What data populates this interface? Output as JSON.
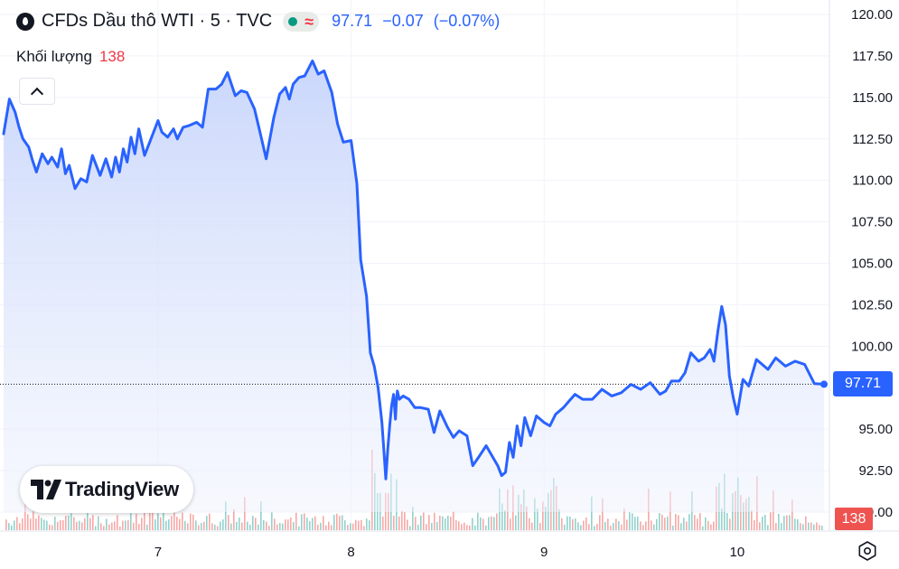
{
  "legend": {
    "title": "CFDs Dầu thô WTI · 5 · TVC",
    "last": "97.71",
    "change": "−0.07",
    "change_pct": "(−0.07%)",
    "volume_label": "Khối lượng",
    "volume_value": "138"
  },
  "price_tag": "97.71",
  "volume_tag": "138",
  "logo_text": "TradingView",
  "colors": {
    "line": "#2962ff",
    "area_top": "#c8d6fb",
    "volume_up": "#26a69a",
    "volume_down": "#ef5350",
    "price_tag": "#2962ff"
  },
  "chart_data": {
    "type": "area",
    "title": "CFDs Dầu thô WTI · 5 · TVC",
    "xlabel": "",
    "ylabel": "",
    "x_ticks": [
      "7",
      "8",
      "9",
      "10"
    ],
    "y_ticks": [
      "120.00",
      "117.50",
      "115.00",
      "112.50",
      "110.00",
      "107.50",
      "105.00",
      "102.50",
      "100.00",
      "97.50",
      "95.00",
      "92.50",
      "90.00"
    ],
    "ylim": [
      90,
      120
    ],
    "xlim": [
      6.2,
      10.45
    ],
    "grid": true,
    "price_line": 97.71,
    "series": [
      {
        "x": [
          6.2,
          6.23,
          6.26,
          6.28,
          6.3,
          6.33,
          6.35,
          6.37,
          6.4,
          6.43,
          6.45,
          6.48,
          6.5,
          6.52,
          6.54,
          6.57,
          6.6,
          6.63,
          6.66,
          6.7,
          6.73,
          6.76,
          6.78,
          6.8,
          6.82,
          6.84,
          6.86,
          6.88,
          6.9,
          6.93,
          6.96,
          7.0,
          7.02,
          7.05,
          7.08,
          7.1,
          7.13,
          7.16,
          7.2,
          7.23,
          7.26,
          7.3,
          7.33,
          7.36,
          7.4,
          7.43,
          7.46,
          7.5,
          7.53,
          7.56,
          7.6,
          7.63,
          7.66,
          7.68,
          7.7,
          7.73,
          7.76,
          7.8,
          7.83,
          7.86,
          7.9,
          7.93,
          7.96,
          8.0,
          8.03,
          8.05,
          8.08,
          8.1,
          8.12,
          8.14,
          8.16,
          8.17,
          8.18,
          8.19,
          8.2,
          8.21,
          8.22,
          8.23,
          8.235,
          8.24,
          8.25,
          8.27,
          8.3,
          8.33,
          8.36,
          8.4,
          8.43,
          8.46,
          8.5,
          8.53,
          8.56,
          8.6,
          8.63,
          8.66,
          8.7,
          8.73,
          8.76,
          8.78,
          8.8,
          8.82,
          8.84,
          8.86,
          8.88,
          8.9,
          8.93,
          8.96,
          9.0,
          9.03,
          9.06,
          9.1,
          9.13,
          9.16,
          9.2,
          9.25,
          9.3,
          9.35,
          9.4,
          9.45,
          9.5,
          9.55,
          9.6,
          9.63,
          9.66,
          9.7,
          9.73,
          9.76,
          9.8,
          9.83,
          9.86,
          9.88,
          9.9,
          9.92,
          9.94,
          9.96,
          9.98,
          10.0,
          10.03,
          10.06,
          10.1,
          10.13,
          10.16,
          10.2,
          10.25,
          10.3,
          10.35,
          10.4,
          10.45
        ],
        "y": [
          112.8,
          114.9,
          114.1,
          113.2,
          112.5,
          112.0,
          111.2,
          110.5,
          111.6,
          111.0,
          111.4,
          110.8,
          111.9,
          110.4,
          110.9,
          109.5,
          110.1,
          109.9,
          111.5,
          110.3,
          111.3,
          110.2,
          111.4,
          110.5,
          111.9,
          111.1,
          112.6,
          111.6,
          113.1,
          111.5,
          112.4,
          113.6,
          112.9,
          112.6,
          113.1,
          112.5,
          113.2,
          113.3,
          113.5,
          113.2,
          115.5,
          115.5,
          115.8,
          116.5,
          115.1,
          115.4,
          115.3,
          114.3,
          112.8,
          111.3,
          113.8,
          115.2,
          115.6,
          114.9,
          115.8,
          116.2,
          116.3,
          117.2,
          116.4,
          116.6,
          115.3,
          113.4,
          112.3,
          112.4,
          109.8,
          105.2,
          103.0,
          99.6,
          98.8,
          97.5,
          95.4,
          93.7,
          92.0,
          93.8,
          95.2,
          96.4,
          97.1,
          95.6,
          96.8,
          97.3,
          96.8,
          97.0,
          96.8,
          96.3,
          96.3,
          96.2,
          94.8,
          96.1,
          95.1,
          94.5,
          94.9,
          94.6,
          92.8,
          93.3,
          94.0,
          93.4,
          92.8,
          92.2,
          92.4,
          94.2,
          93.3,
          95.2,
          94.0,
          95.7,
          94.6,
          95.8,
          95.4,
          95.2,
          95.9,
          96.3,
          96.7,
          97.1,
          96.8,
          96.8,
          97.4,
          97.0,
          97.2,
          97.7,
          97.4,
          97.8,
          97.1,
          97.3,
          97.9,
          97.9,
          98.4,
          99.6,
          99.1,
          99.3,
          99.8,
          99.1,
          100.9,
          102.4,
          101.3,
          98.2,
          96.9,
          95.9,
          98.0,
          97.6,
          99.2,
          98.9,
          98.6,
          99.3,
          98.8,
          99.1,
          98.9,
          97.75,
          97.71
        ]
      }
    ]
  }
}
